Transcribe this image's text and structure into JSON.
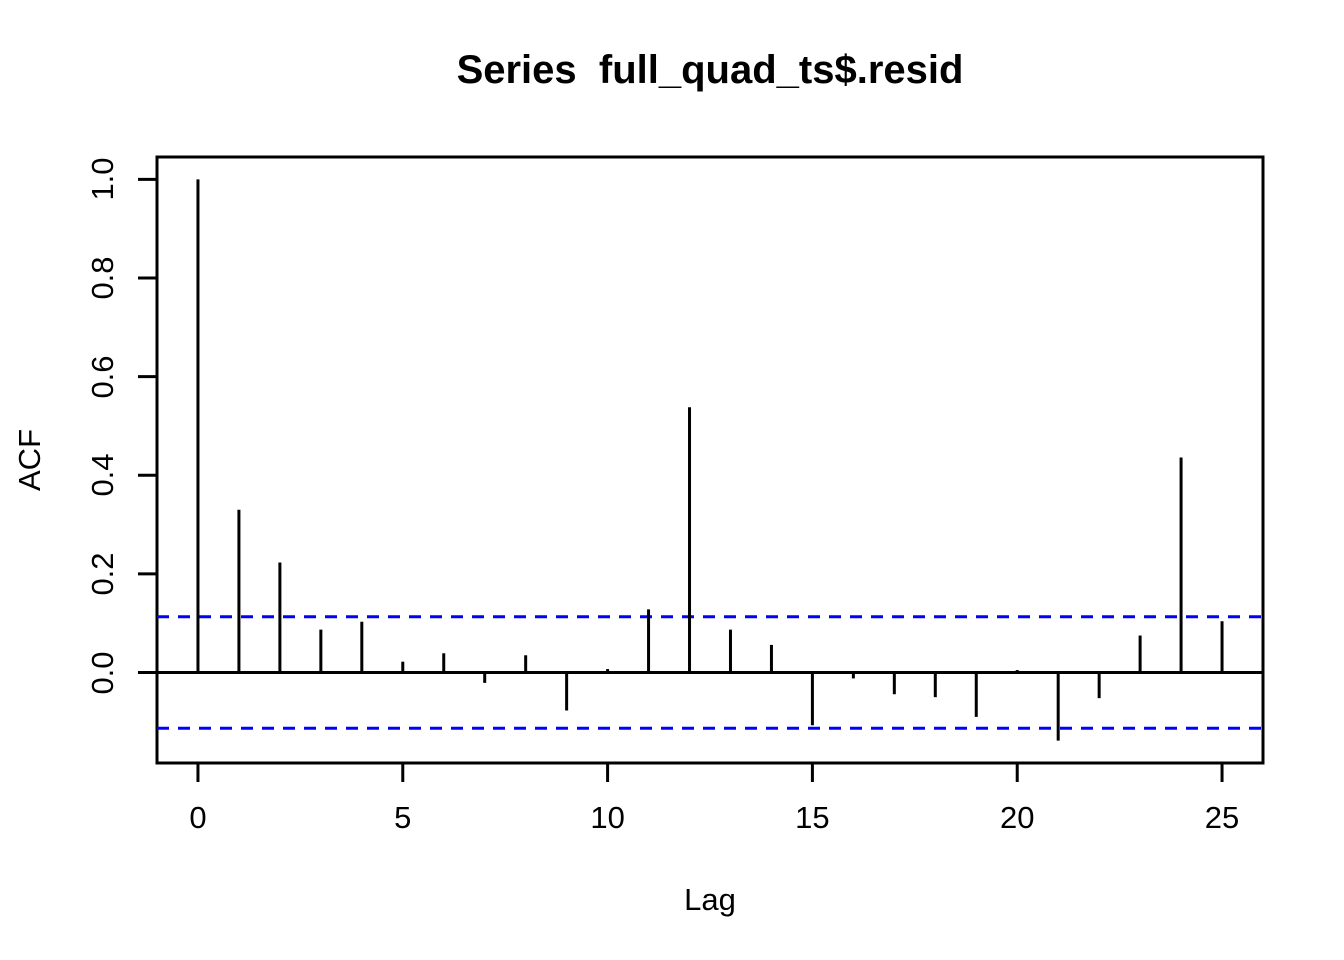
{
  "title": "Series  full_quad_ts$.resid",
  "chart_data": {
    "type": "bar",
    "subtype": "acf-stem-plot",
    "title": "Series  full_quad_ts$.resid",
    "xlabel": "Lag",
    "ylabel": "ACF",
    "x": [
      0,
      1,
      2,
      3,
      4,
      5,
      6,
      7,
      8,
      9,
      10,
      11,
      12,
      13,
      14,
      15,
      16,
      17,
      18,
      19,
      20,
      21,
      22,
      23,
      24,
      25
    ],
    "values": [
      1.0,
      0.33,
      0.223,
      0.087,
      0.103,
      0.022,
      0.039,
      -0.021,
      0.035,
      -0.077,
      0.007,
      0.128,
      0.538,
      0.087,
      0.056,
      -0.107,
      -0.012,
      -0.044,
      -0.05,
      -0.09,
      0.005,
      -0.138,
      -0.052,
      0.075,
      0.436,
      0.104
    ],
    "confidence_bounds": {
      "upper": 0.113,
      "lower": -0.113,
      "line_style": "dashed",
      "line_color": "#0000ff"
    },
    "xlim": [
      -1,
      26
    ],
    "ylim": [
      -0.1835,
      1.0455
    ],
    "x_ticks": [
      0,
      5,
      10,
      15,
      20,
      25
    ],
    "x_tick_labels": [
      "0",
      "5",
      "10",
      "15",
      "20",
      "25"
    ],
    "y_ticks": [
      0.0,
      0.2,
      0.4,
      0.6,
      0.8,
      1.0
    ],
    "y_tick_labels": [
      "0.0",
      "0.2",
      "0.4",
      "0.6",
      "0.8",
      "1.0"
    ],
    "bar_color": "#000000",
    "axis_color": "#000000",
    "background_color": "#ffffff",
    "grid": false,
    "legend": false,
    "zero_line": true
  }
}
